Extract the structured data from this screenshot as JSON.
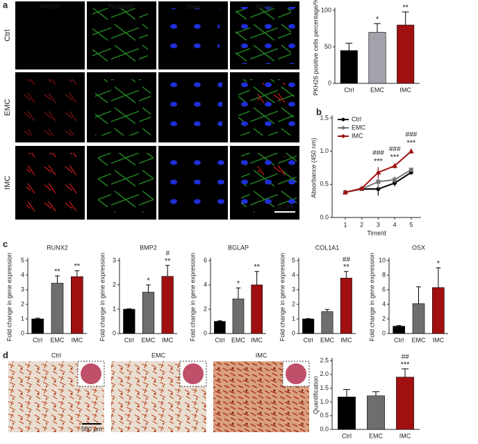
{
  "figure": {
    "panel_labels": [
      "a",
      "b",
      "c",
      "d"
    ],
    "image_channels": [
      "PKH26",
      "Phalloidin",
      "Dapi",
      "Merge"
    ],
    "image_rows": [
      "Ctrl",
      "EMC",
      "IMC"
    ],
    "scale_bar_a": "50 μm",
    "stain_labels": [
      "Ctrl",
      "EMC",
      "IMC"
    ],
    "scale_bar_d": "500 μm"
  },
  "chart_data": [
    {
      "type": "bar",
      "ylabel": "PKH26 positive cells percentage/%",
      "categories": [
        "Ctrl",
        "EMC",
        "IMC"
      ],
      "values": [
        45,
        70,
        80
      ],
      "errors": [
        10,
        12,
        18
      ],
      "colors": [
        "#000000",
        "#a3a3ab",
        "#a01010"
      ],
      "ylim": [
        0,
        100
      ],
      "yticks": [
        0,
        50,
        100
      ],
      "significance": [
        null,
        "*",
        "**"
      ]
    },
    {
      "type": "line",
      "xlabel": "Time/d",
      "ylabel": "Absorbance (450 nm)",
      "x": [
        1,
        2,
        3,
        4,
        5
      ],
      "xlim": [
        0.2,
        5.6
      ],
      "xticks": [
        1,
        2,
        3,
        4,
        5
      ],
      "ylim": [
        0,
        1.5
      ],
      "yticks": [
        {
          "value": 0,
          "label": "0.0"
        },
        {
          "value": 0.5,
          "label": "0.5"
        },
        {
          "value": 1,
          "label": "1.0"
        },
        {
          "value": 1.5,
          "label": "1.5"
        }
      ],
      "legend": "upper left",
      "series": [
        {
          "name": "Ctrl",
          "color": "#000000",
          "marker": "circle",
          "values": [
            0.38,
            0.43,
            0.43,
            0.52,
            0.68
          ],
          "errors": [
            0.03,
            0.02,
            0.1,
            0.05,
            0.03
          ]
        },
        {
          "name": "EMC",
          "color": "#777777",
          "marker": "square",
          "values": [
            0.38,
            0.43,
            0.54,
            0.57,
            0.72
          ],
          "errors": [
            0.03,
            0.02,
            0.1,
            0.05,
            0.03
          ]
        },
        {
          "name": "IMC",
          "color": "#a01010",
          "marker": "triangle",
          "values": [
            0.38,
            0.44,
            0.68,
            0.78,
            1.0
          ],
          "errors": [
            0.03,
            0.02,
            0.08,
            0.04,
            0.04
          ]
        }
      ],
      "significance": [
        null,
        null,
        "***",
        "***",
        "***"
      ],
      "significance2": [
        null,
        null,
        "###",
        "###",
        "###"
      ]
    },
    {
      "type": "bar",
      "title": "RUNX2",
      "ylabel": "Fold change in gene expression",
      "categories": [
        "Ctrl",
        "EMC",
        "IMC"
      ],
      "values": [
        1,
        3.45,
        3.9
      ],
      "errors": [
        0.05,
        0.5,
        0.4
      ],
      "colors": [
        "#000000",
        "#6e6e6e",
        "#a01010"
      ],
      "ylim": [
        0,
        5
      ],
      "yticks": [
        0,
        1,
        2,
        3,
        4,
        5
      ],
      "significance": [
        null,
        "**",
        "**"
      ]
    },
    {
      "type": "bar",
      "title": "BMP2",
      "ylabel": "Fold change in gene expression",
      "categories": [
        "Ctrl",
        "EMC",
        "IMC"
      ],
      "values": [
        1,
        1.7,
        2.35
      ],
      "errors": [
        0.02,
        0.3,
        0.45
      ],
      "colors": [
        "#000000",
        "#6e6e6e",
        "#a01010"
      ],
      "ylim": [
        0,
        3
      ],
      "yticks": [
        0,
        1,
        2,
        3
      ],
      "significance": [
        null,
        "*",
        "**"
      ],
      "significance2": [
        null,
        null,
        "#"
      ]
    },
    {
      "type": "bar",
      "title": "BGLAP",
      "ylabel": "Fold change in gene expression",
      "categories": [
        "Ctrl",
        "EMC",
        "IMC"
      ],
      "values": [
        1,
        2.85,
        4.0
      ],
      "errors": [
        0.05,
        0.9,
        1.1
      ],
      "colors": [
        "#000000",
        "#6e6e6e",
        "#a01010"
      ],
      "ylim": [
        0,
        6
      ],
      "yticks": [
        0,
        2,
        4,
        6
      ],
      "significance": [
        null,
        "*",
        "**"
      ]
    },
    {
      "type": "bar",
      "title": "COL1A1",
      "ylabel": "Fold change in gene expression",
      "categories": [
        "Ctrl",
        "EMC",
        "IMC"
      ],
      "values": [
        1,
        1.5,
        3.8
      ],
      "errors": [
        0.02,
        0.15,
        0.45
      ],
      "colors": [
        "#000000",
        "#6e6e6e",
        "#a01010"
      ],
      "ylim": [
        0,
        5
      ],
      "yticks": [
        0,
        1,
        2,
        3,
        4,
        5
      ],
      "significance": [
        null,
        null,
        "**"
      ],
      "significance2": [
        null,
        null,
        "##"
      ]
    },
    {
      "type": "bar",
      "title": "OSX",
      "ylabel": "Fold change in gene expression",
      "categories": [
        "Ctrl",
        "EMC",
        "IMC"
      ],
      "values": [
        1,
        4.1,
        6.3
      ],
      "errors": [
        0.1,
        2.3,
        2.7
      ],
      "colors": [
        "#000000",
        "#6e6e6e",
        "#a01010"
      ],
      "ylim": [
        0,
        10
      ],
      "yticks": [
        0,
        2,
        4,
        6,
        8,
        10
      ],
      "significance": [
        null,
        null,
        "*"
      ]
    },
    {
      "type": "bar",
      "ylabel": "Quantification",
      "categories": [
        "Ctrl",
        "EMC",
        "IMC"
      ],
      "values": [
        1.18,
        1.22,
        1.9
      ],
      "errors": [
        0.27,
        0.15,
        0.3
      ],
      "colors": [
        "#000000",
        "#6e6e6e",
        "#a01010"
      ],
      "ylim": [
        0,
        2.5
      ],
      "yticks": [
        {
          "value": 0,
          "label": "0.0"
        },
        {
          "value": 0.5,
          "label": "0.5"
        },
        {
          "value": 1,
          "label": "1.0"
        },
        {
          "value": 1.5,
          "label": "1.5"
        },
        {
          "value": 2,
          "label": "2.0"
        },
        {
          "value": 2.5,
          "label": "2.5"
        }
      ],
      "significance": [
        null,
        null,
        "***"
      ],
      "significance2": [
        null,
        null,
        "##"
      ]
    }
  ]
}
